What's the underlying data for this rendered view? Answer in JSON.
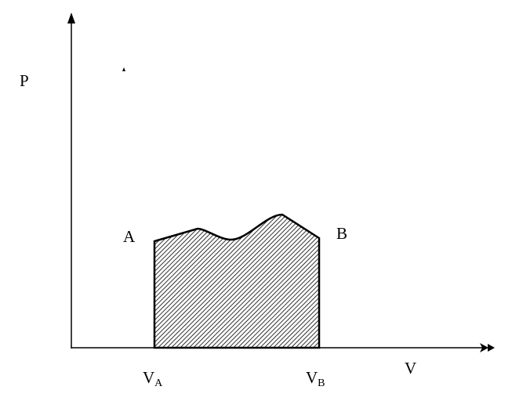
{
  "diagram": {
    "y_axis_label": "P",
    "x_axis_label": "V",
    "point_a_label": "A",
    "point_b_label": "B",
    "va_label": {
      "main": "V",
      "sub": "A"
    },
    "vb_label": {
      "main": "V",
      "sub": "B"
    },
    "region_fill": "hatched",
    "line_color": "#000000"
  }
}
